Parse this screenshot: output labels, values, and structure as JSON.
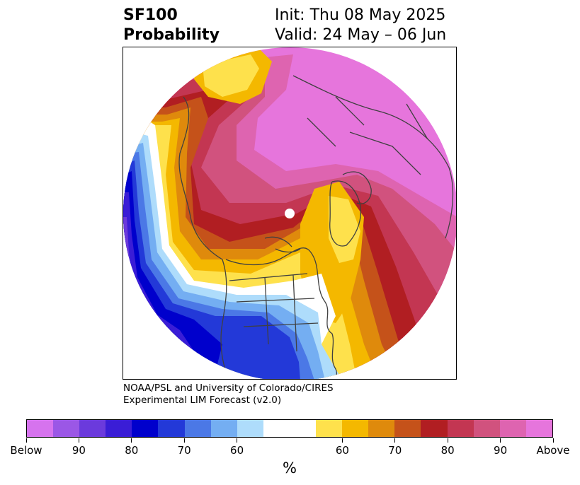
{
  "title": {
    "left_line1": "SF100",
    "left_line2": "Probability",
    "right_line1": "Init: Thu 08 May 2025",
    "right_line2": "Valid: 24 May – 06 Jun"
  },
  "credits": {
    "line1": "NOAA/PSL and University of Colorado/CIRES",
    "line2": "Experimental LIM Forecast (v2.0)"
  },
  "colorbar": {
    "colors": [
      "#d673ee",
      "#9b57e6",
      "#6b3adc",
      "#3a1dd6",
      "#0000cc",
      "#2339d8",
      "#4b78e6",
      "#74aef2",
      "#aedcfb",
      "#ffffff",
      "#ffffff",
      "#fee14c",
      "#f4b800",
      "#df8a0c",
      "#c5521a",
      "#b11e22",
      "#c33652",
      "#d1527e",
      "#de64b0",
      "#e675dc"
    ],
    "tick_labels": [
      "Below",
      "90",
      "80",
      "70",
      "60",
      "60",
      "70",
      "80",
      "90",
      "Above"
    ],
    "unit": "%"
  },
  "map": {
    "projection": "north-polar-stereographic",
    "field": "probability of above/below normal",
    "palette": {
      "above_90": "#e675dc",
      "above_85": "#de64b0",
      "above_80": "#d1527e",
      "above_75": "#c33652",
      "above_70": "#b11e22",
      "above_65": "#c5521a",
      "above_60": "#df8a0c",
      "above_55": "#f4b800",
      "above_50": "#fee14c",
      "neutral": "#ffffff",
      "below_55": "#aedcfb",
      "below_60": "#74aef2",
      "below_65": "#4b78e6",
      "below_70": "#2339d8",
      "below_75": "#0000cc",
      "below_80": "#3a1dd6",
      "below_85": "#6b3adc",
      "below_90": "#9b57e6",
      "below_95": "#d673ee",
      "coast": "#404040",
      "pole_marker": "#ffffff"
    }
  }
}
